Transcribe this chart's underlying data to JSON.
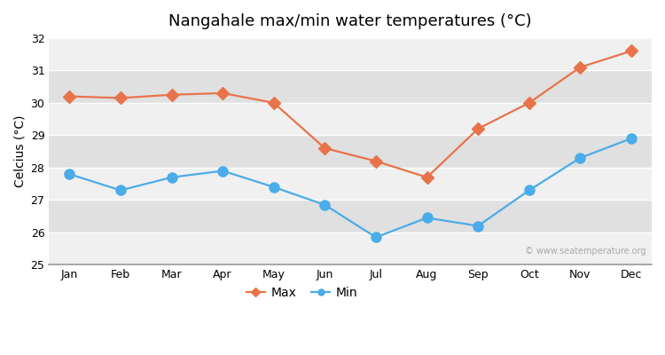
{
  "title": "Nangahale max/min water temperatures (°C)",
  "ylabel": "Celcius (°C)",
  "months": [
    "Jan",
    "Feb",
    "Mar",
    "Apr",
    "May",
    "Jun",
    "Jul",
    "Aug",
    "Sep",
    "Oct",
    "Nov",
    "Dec"
  ],
  "max_temps": [
    30.2,
    30.15,
    30.25,
    30.3,
    30.0,
    28.6,
    28.2,
    27.7,
    29.2,
    30.0,
    31.1,
    31.6
  ],
  "min_temps": [
    27.8,
    27.3,
    27.7,
    27.9,
    27.4,
    26.85,
    25.85,
    26.45,
    26.2,
    27.3,
    28.3,
    28.9
  ],
  "max_color": "#e8734a",
  "min_color": "#4aace8",
  "figure_bg": "#ffffff",
  "plot_bg_light": "#f0f0f0",
  "plot_bg_dark": "#e0e0e0",
  "grid_color": "#ffffff",
  "ylim": [
    25,
    32
  ],
  "yticks": [
    25,
    26,
    27,
    28,
    29,
    30,
    31,
    32
  ],
  "max_marker": "D",
  "min_marker": "o",
  "linewidth": 1.6,
  "max_markersize": 7,
  "min_markersize": 8,
  "watermark": "© www.seatemperature.org",
  "title_fontsize": 13,
  "ylabel_fontsize": 10,
  "tick_fontsize": 9,
  "legend_fontsize": 10,
  "watermark_fontsize": 7
}
